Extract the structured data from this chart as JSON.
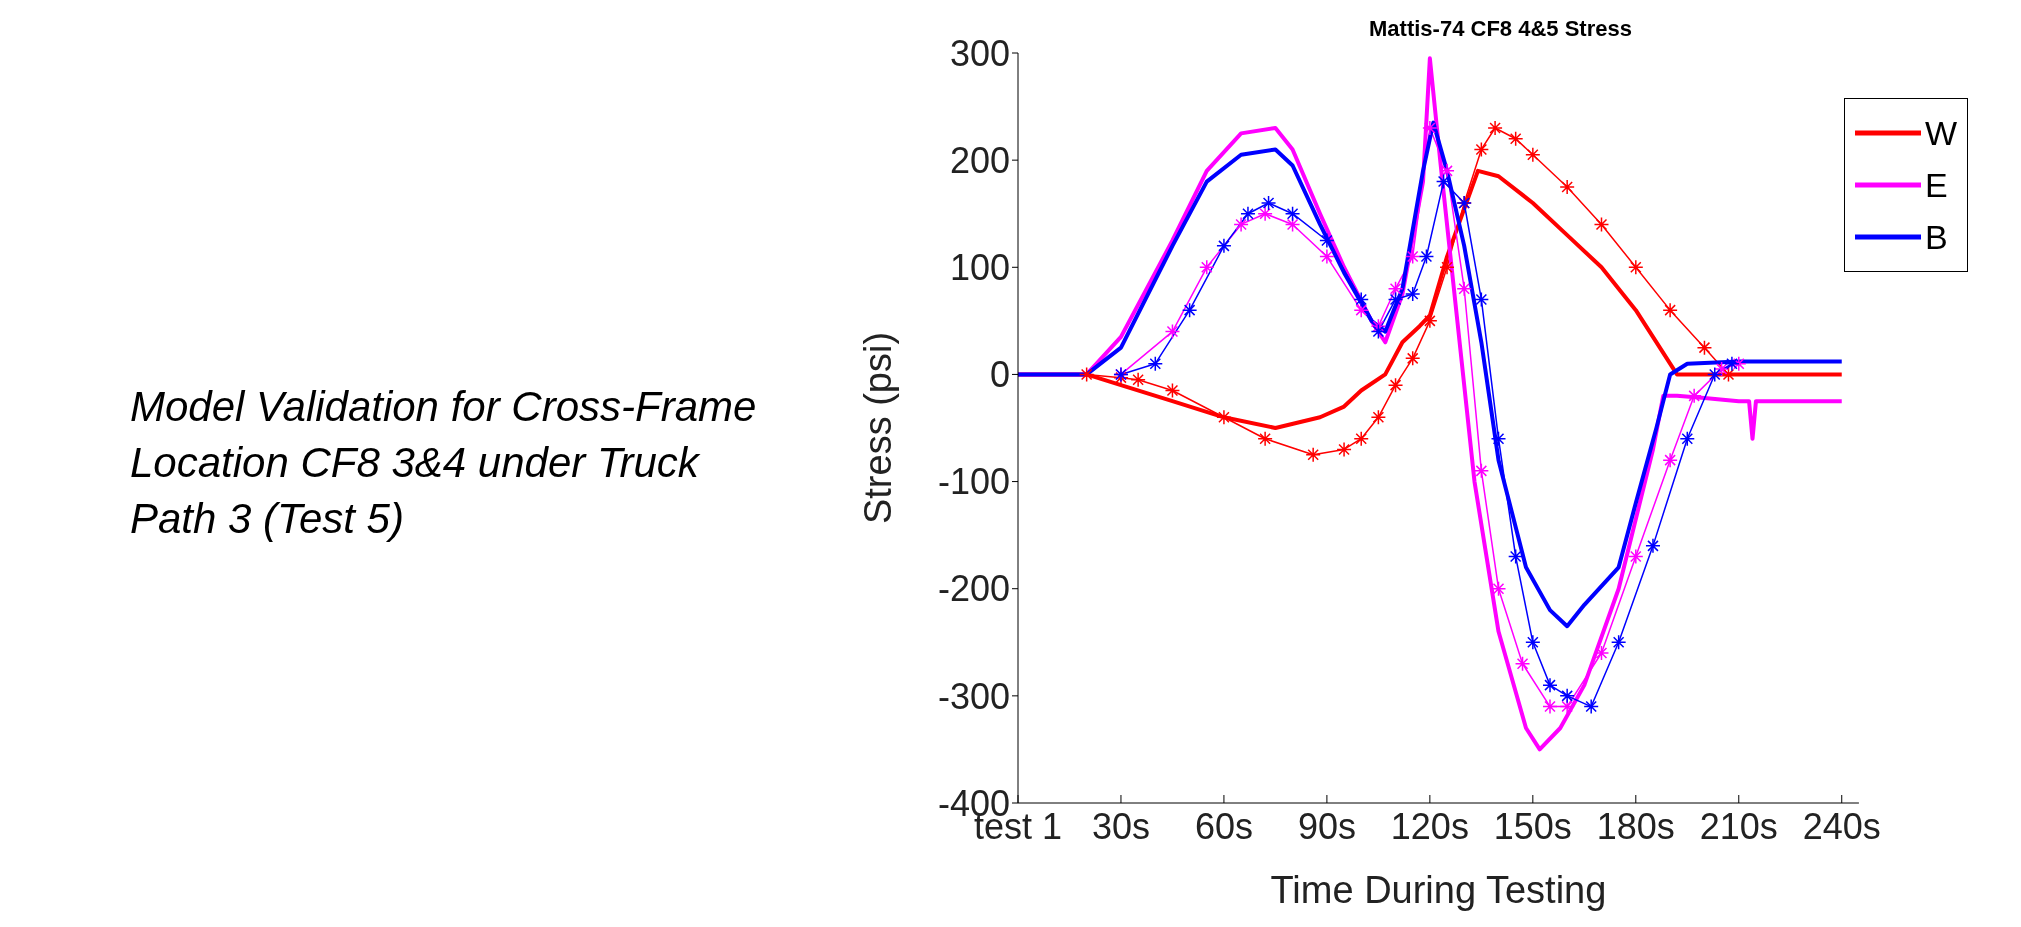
{
  "chart_data": {
    "type": "line",
    "title": "Mattis-74 CF8 4&5 Stress",
    "xlabel": "Time During Testing",
    "ylabel": "Stress (psi)",
    "annotations": [
      "Model Validation for Cross-Frame Location CF8 3&4 under Truck Path 3 (Test 5)"
    ],
    "xlim": [
      0,
      245
    ],
    "xticks": [
      {
        "value": 0,
        "label": "test 1"
      },
      {
        "value": 30,
        "label": "30s"
      },
      {
        "value": 60,
        "label": "60s"
      },
      {
        "value": 90,
        "label": "90s"
      },
      {
        "value": 120,
        "label": "120s"
      },
      {
        "value": 150,
        "label": "150s"
      },
      {
        "value": 180,
        "label": "180s"
      },
      {
        "value": 210,
        "label": "210s"
      },
      {
        "value": 240,
        "label": "240s"
      }
    ],
    "ylim": [
      -400,
      300
    ],
    "yticks": [
      -400,
      -300,
      -200,
      -100,
      0,
      100,
      200,
      300
    ],
    "legend": "top right",
    "series": [
      {
        "name": "W",
        "color": "#ff0000",
        "marker": "none",
        "x": [
          0,
          10,
          20,
          30,
          45,
          60,
          75,
          88,
          95,
          100,
          107,
          112,
          117,
          120,
          125,
          134,
          140,
          150,
          160,
          170,
          180,
          192,
          200,
          220,
          240
        ],
        "values": [
          0,
          0,
          0,
          -10,
          -25,
          -40,
          -50,
          -40,
          -30,
          -15,
          0,
          30,
          45,
          55,
          110,
          190,
          185,
          160,
          130,
          100,
          60,
          0,
          0,
          0,
          0
        ]
      },
      {
        "color": "#ff0000",
        "marker": "cross",
        "x": [
          20,
          30,
          35,
          45,
          60,
          72,
          86,
          95,
          100,
          105,
          110,
          115,
          120,
          125,
          130,
          135,
          139,
          145,
          150,
          160,
          170,
          180,
          190,
          200,
          207
        ],
        "values": [
          0,
          -3,
          -5,
          -15,
          -40,
          -60,
          -75,
          -70,
          -60,
          -40,
          -10,
          15,
          50,
          100,
          160,
          210,
          230,
          220,
          205,
          175,
          140,
          100,
          60,
          25,
          0
        ]
      },
      {
        "name": "E",
        "color": "#ff00ff",
        "marker": "none",
        "x": [
          0,
          10,
          20,
          30,
          45,
          55,
          65,
          75,
          80,
          88,
          95,
          103,
          107,
          112,
          118,
          120,
          123,
          128,
          133,
          140,
          148,
          152,
          158,
          165,
          175,
          185,
          188,
          192,
          200,
          210,
          213,
          214,
          215,
          220,
          240
        ],
        "values": [
          0,
          0,
          0,
          35,
          125,
          190,
          225,
          230,
          210,
          150,
          100,
          50,
          30,
          75,
          180,
          295,
          200,
          50,
          -100,
          -240,
          -330,
          -350,
          -330,
          -290,
          -200,
          -70,
          -20,
          -20,
          -22,
          -25,
          -25,
          -60,
          -25,
          -25,
          -25
        ]
      },
      {
        "color": "#ff00ff",
        "marker": "cross",
        "x": [
          30,
          45,
          55,
          65,
          72,
          80,
          90,
          100,
          105,
          110,
          115,
          120,
          125,
          130,
          135,
          140,
          147,
          155,
          160,
          170,
          180,
          190,
          197,
          205,
          210
        ],
        "values": [
          0,
          40,
          100,
          140,
          150,
          140,
          110,
          60,
          45,
          80,
          110,
          230,
          190,
          80,
          -90,
          -200,
          -270,
          -310,
          -310,
          -260,
          -170,
          -80,
          -20,
          5,
          10
        ]
      },
      {
        "name": "B",
        "color": "#0000ff",
        "marker": "none",
        "x": [
          0,
          10,
          20,
          30,
          45,
          55,
          65,
          75,
          80,
          88,
          95,
          103,
          107,
          112,
          118,
          121,
          125,
          130,
          135,
          140,
          148,
          155,
          160,
          165,
          175,
          180,
          186,
          190,
          195,
          210,
          240
        ],
        "values": [
          0,
          0,
          0,
          25,
          120,
          180,
          205,
          210,
          195,
          140,
          95,
          50,
          40,
          80,
          190,
          235,
          190,
          120,
          30,
          -80,
          -180,
          -220,
          -235,
          -215,
          -180,
          -120,
          -50,
          0,
          10,
          12,
          12
        ]
      },
      {
        "color": "#0000ff",
        "marker": "cross",
        "x": [
          30,
          40,
          50,
          60,
          67,
          73,
          80,
          90,
          100,
          105,
          110,
          115,
          119,
          124,
          130,
          135,
          140,
          145,
          150,
          155,
          160,
          167,
          175,
          185,
          195,
          203,
          208
        ],
        "values": [
          0,
          10,
          60,
          120,
          150,
          160,
          150,
          125,
          70,
          40,
          70,
          75,
          110,
          180,
          160,
          70,
          -60,
          -170,
          -250,
          -290,
          -300,
          -310,
          -250,
          -160,
          -60,
          0,
          10
        ]
      }
    ]
  }
}
